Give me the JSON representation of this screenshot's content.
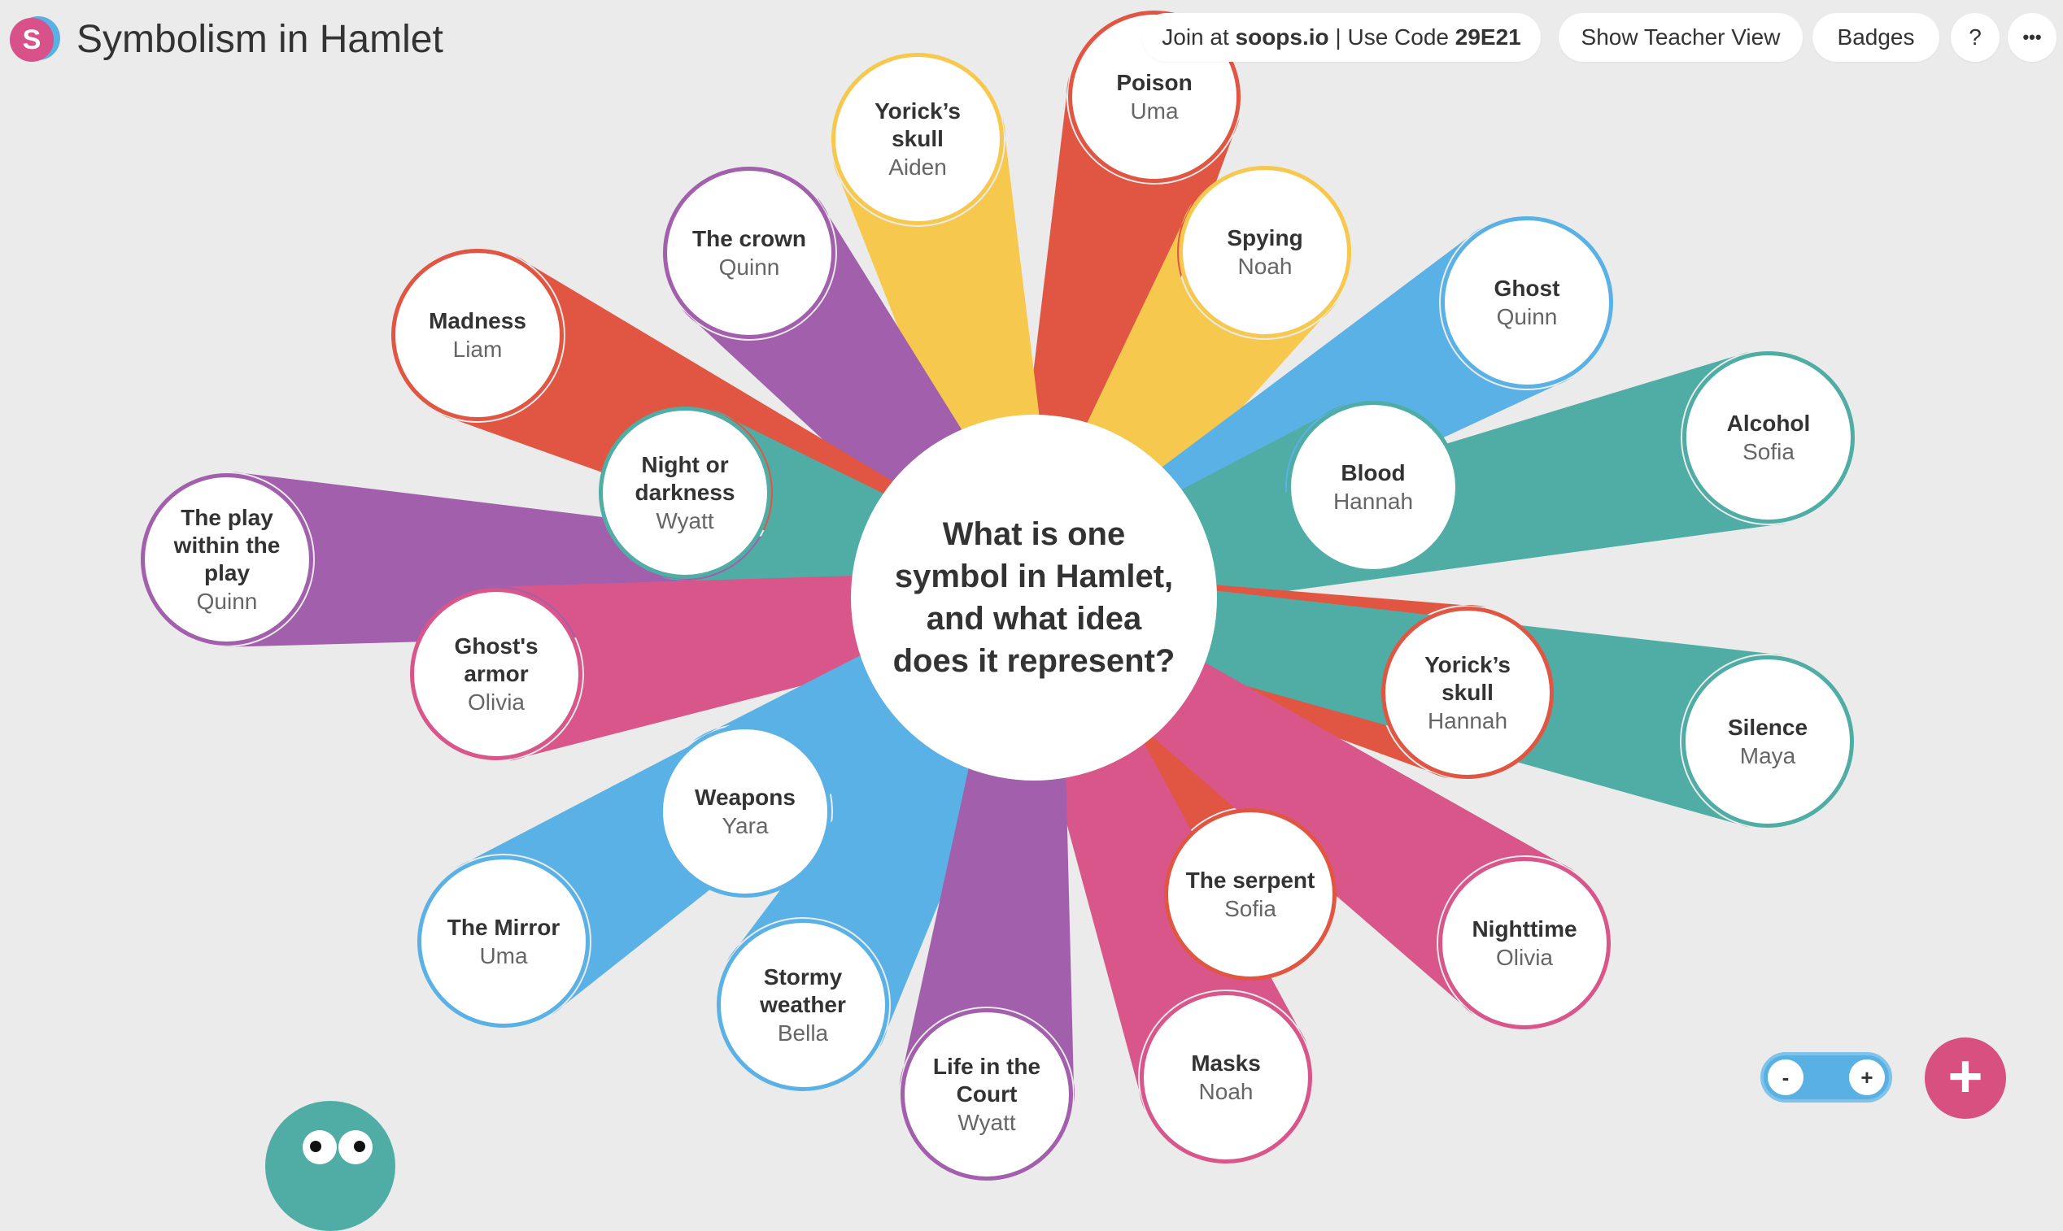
{
  "header": {
    "title": "Symbolism in Hamlet",
    "logo_letter": "S",
    "join_prefix": "Join at ",
    "join_site": "soops.io",
    "join_separator": " | Use Code ",
    "join_code": "29E21",
    "teacher_view_label": "Show Teacher View",
    "badges_label": "Badges",
    "help_label": "?",
    "more_label": "•••"
  },
  "prompt": "What is one symbol in Hamlet, and what idea does it represent?",
  "colors": {
    "red": "#e05643",
    "yellow": "#f6c94e",
    "purple": "#a25fac",
    "blue": "#5ab1e5",
    "teal": "#4fada5",
    "pink": "#d9568a",
    "background": "#ebebeb",
    "fab": "#d8507f"
  },
  "responses": [
    {
      "title": "Poison",
      "author": "Uma",
      "color": "red"
    },
    {
      "title": "Yorick’s skull",
      "author": "Aiden",
      "color": "yellow"
    },
    {
      "title": "Spying",
      "author": "Noah",
      "color": "yellow"
    },
    {
      "title": "The crown",
      "author": "Quinn",
      "color": "purple"
    },
    {
      "title": "Ghost",
      "author": "Quinn",
      "color": "blue"
    },
    {
      "title": "Madness",
      "author": "Liam",
      "color": "red"
    },
    {
      "title": "Alcohol",
      "author": "Sofia",
      "color": "teal"
    },
    {
      "title": "Night or darkness",
      "author": "Wyatt",
      "color": "teal"
    },
    {
      "title": "Blood",
      "author": "Hannah",
      "color": "teal"
    },
    {
      "title": "The play within the play",
      "author": "Quinn",
      "color": "purple"
    },
    {
      "title": "Ghost's armor",
      "author": "Olivia",
      "color": "pink"
    },
    {
      "title": "Yorick’s skull",
      "author": "Hannah",
      "color": "red"
    },
    {
      "title": "Silence",
      "author": "Maya",
      "color": "teal"
    },
    {
      "title": "Weapons",
      "author": "Yara",
      "color": "blue"
    },
    {
      "title": "The serpent",
      "author": "Sofia",
      "color": "red"
    },
    {
      "title": "The Mirror",
      "author": "Uma",
      "color": "blue"
    },
    {
      "title": "Nighttime",
      "author": "Olivia",
      "color": "pink"
    },
    {
      "title": "Stormy weather",
      "author": "Bella",
      "color": "blue"
    },
    {
      "title": "Masks",
      "author": "Noah",
      "color": "pink"
    },
    {
      "title": "Life in the Court",
      "author": "Wyatt",
      "color": "purple"
    }
  ],
  "zoom": {
    "minus_label": "-",
    "plus_label": "+"
  },
  "fab_label": "+"
}
